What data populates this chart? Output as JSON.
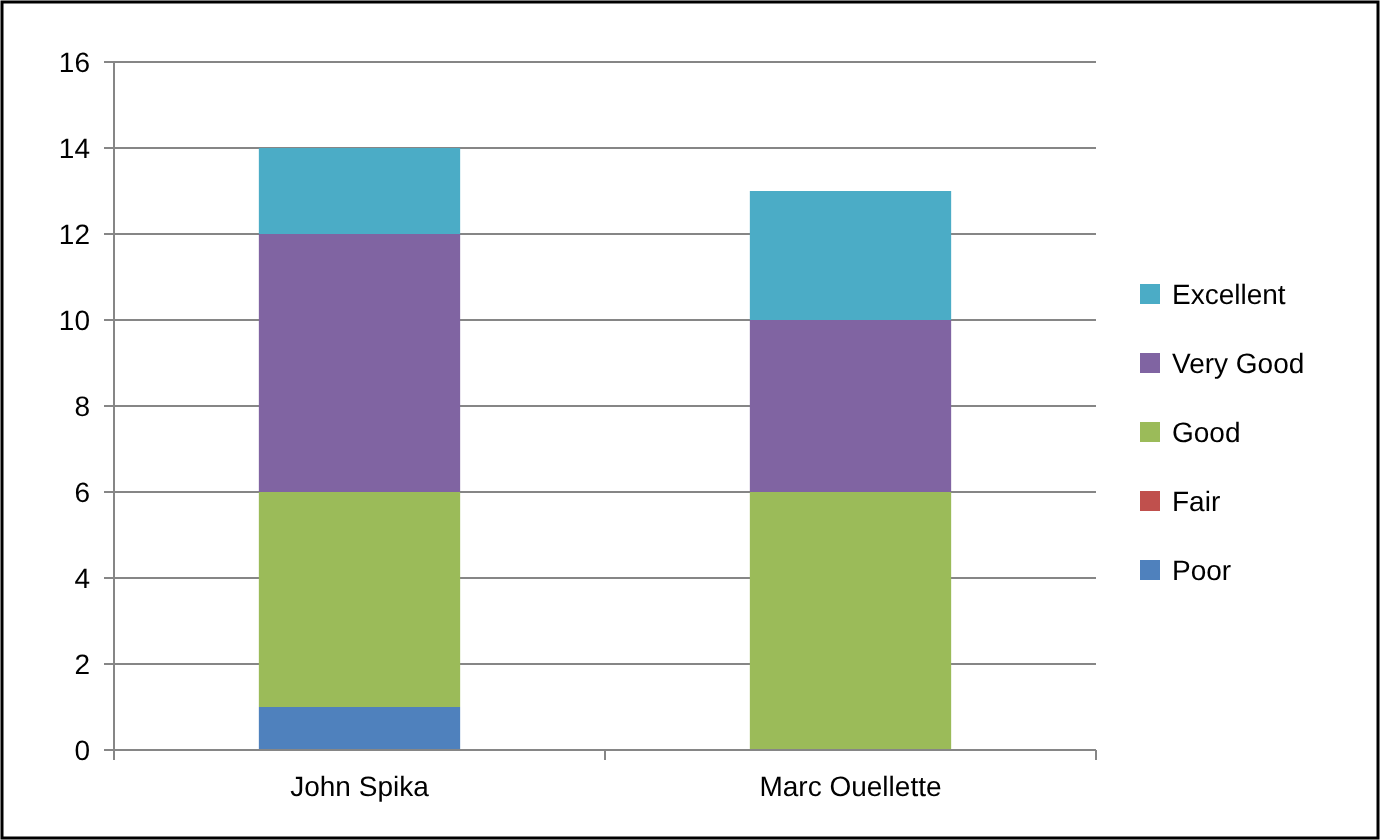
{
  "chart_data": {
    "type": "bar",
    "stacked": true,
    "categories": [
      "John Spika",
      "Marc Ouellette"
    ],
    "series": [
      {
        "name": "Poor",
        "color": "#4f81bd",
        "values": [
          1,
          0
        ]
      },
      {
        "name": "Fair",
        "color": "#c0504d",
        "values": [
          0,
          0
        ]
      },
      {
        "name": "Good",
        "color": "#9bbb59",
        "values": [
          5,
          6
        ]
      },
      {
        "name": "Very Good",
        "color": "#8064a2",
        "values": [
          6,
          4
        ]
      },
      {
        "name": "Excellent",
        "color": "#4bacc6",
        "values": [
          2,
          3
        ]
      }
    ],
    "ylim": [
      0,
      16
    ],
    "yticks": [
      0,
      2,
      4,
      6,
      8,
      10,
      12,
      14,
      16
    ],
    "grid": "y",
    "legend": "right"
  }
}
